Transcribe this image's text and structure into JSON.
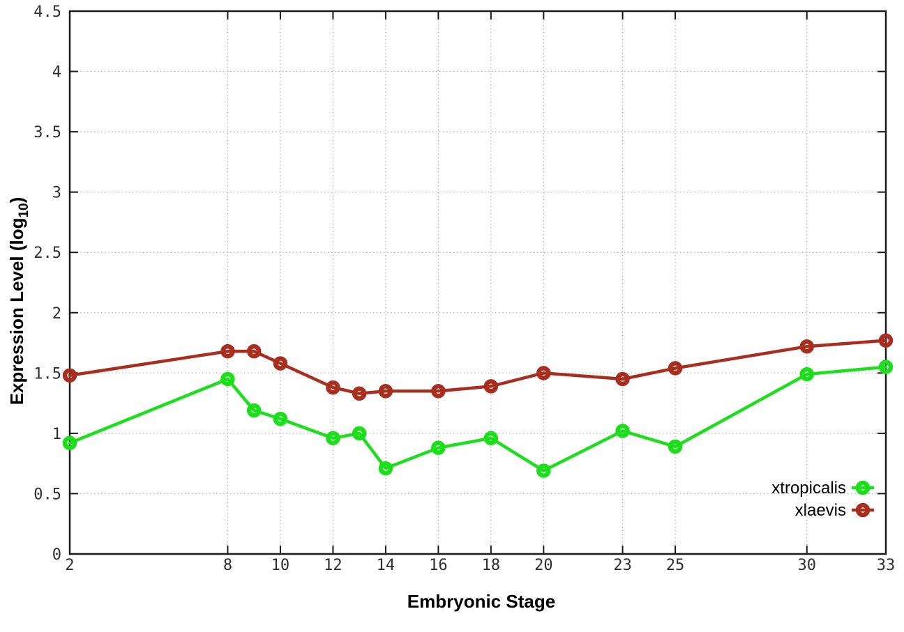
{
  "chart_data": {
    "type": "line",
    "title": "",
    "xlabel": "Embryonic Stage",
    "ylabel": {
      "text": "Expression Level (log",
      "subscript": "10",
      "suffix": ")"
    },
    "xlim": [
      2,
      33
    ],
    "ylim": [
      0,
      4.5
    ],
    "xticks": [
      2,
      8,
      10,
      12,
      14,
      16,
      18,
      20,
      23,
      25,
      30,
      33
    ],
    "yticks": [
      0,
      0.5,
      1,
      1.5,
      2,
      2.5,
      3,
      3.5,
      4,
      4.5
    ],
    "ytick_labels": [
      "0",
      "0.5",
      "1",
      "1.5",
      "2",
      "2.5",
      "3",
      "3.5",
      "4",
      "4.5"
    ],
    "grid": true,
    "grid_style": "dotted",
    "legend_position": "inside-bottom-right",
    "x": [
      2,
      8,
      9,
      10,
      12,
      13,
      14,
      16,
      18,
      20,
      23,
      25,
      30,
      33
    ],
    "series": [
      {
        "name": "xtropicalis",
        "color": "#1cdf1c",
        "marker": "open-circle",
        "values": [
          0.92,
          1.45,
          1.19,
          1.12,
          0.96,
          1.0,
          0.71,
          0.88,
          0.96,
          0.69,
          1.02,
          0.89,
          1.49,
          1.55
        ]
      },
      {
        "name": "xlaevis",
        "color": "#a82f20",
        "marker": "open-circle",
        "values": [
          1.48,
          1.68,
          1.68,
          1.58,
          1.38,
          1.33,
          1.35,
          1.35,
          1.39,
          1.5,
          1.45,
          1.54,
          1.72,
          1.77
        ]
      }
    ],
    "colors": {
      "axis": "#1a1a1a",
      "grid": "#b3b3b3",
      "tick_label": "#2f2f2f",
      "axis_title": "#000000",
      "legend_text": "#000000",
      "background": "#ffffff"
    }
  }
}
